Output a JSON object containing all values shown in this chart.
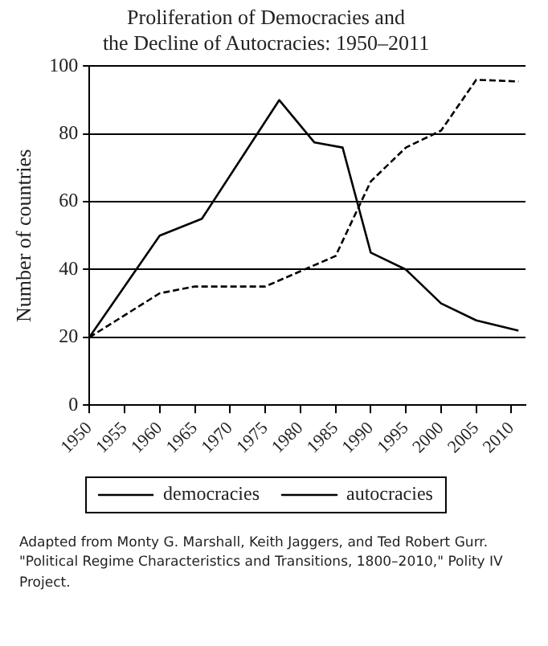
{
  "chart_data": {
    "type": "line",
    "title": [
      "Proliferation of Democracies and",
      "the Decline of Autocracies: 1950–2011"
    ],
    "ylabel": "Number of countries",
    "xlim": [
      1950,
      2012
    ],
    "xticks": [
      1950,
      1955,
      1960,
      1965,
      1970,
      1975,
      1980,
      1985,
      1990,
      1995,
      2000,
      2005,
      2010
    ],
    "ylim": [
      0,
      100
    ],
    "yticks": [
      0,
      20,
      40,
      60,
      80,
      100
    ],
    "grid": "y",
    "legend": "bottom",
    "marker": "none",
    "series": [
      {
        "name": "democracies",
        "color": "#000000",
        "line_style": "dashed",
        "x": [
          1950,
          1960,
          1965,
          1975,
          1985,
          1990,
          1995,
          2000,
          2005,
          2011
        ],
        "values": [
          20,
          33,
          35,
          35,
          44,
          66,
          76,
          81,
          96,
          95.5
        ]
      },
      {
        "name": "autocracies",
        "color": "#000000",
        "line_style": "solid",
        "x": [
          1950,
          1960,
          1966,
          1977,
          1982,
          1986,
          1990,
          1995,
          2000,
          2005,
          2011
        ],
        "values": [
          20,
          50,
          55,
          90,
          77.5,
          76,
          45,
          40,
          30,
          25,
          22
        ]
      }
    ],
    "annotations": [
      "Adapted from Monty G. Marshall, Keith Jaggers, and Ted Robert Gurr. \"Political Regime Characteristics and Transitions, 1800–2010,\" Polity IV Project."
    ]
  }
}
